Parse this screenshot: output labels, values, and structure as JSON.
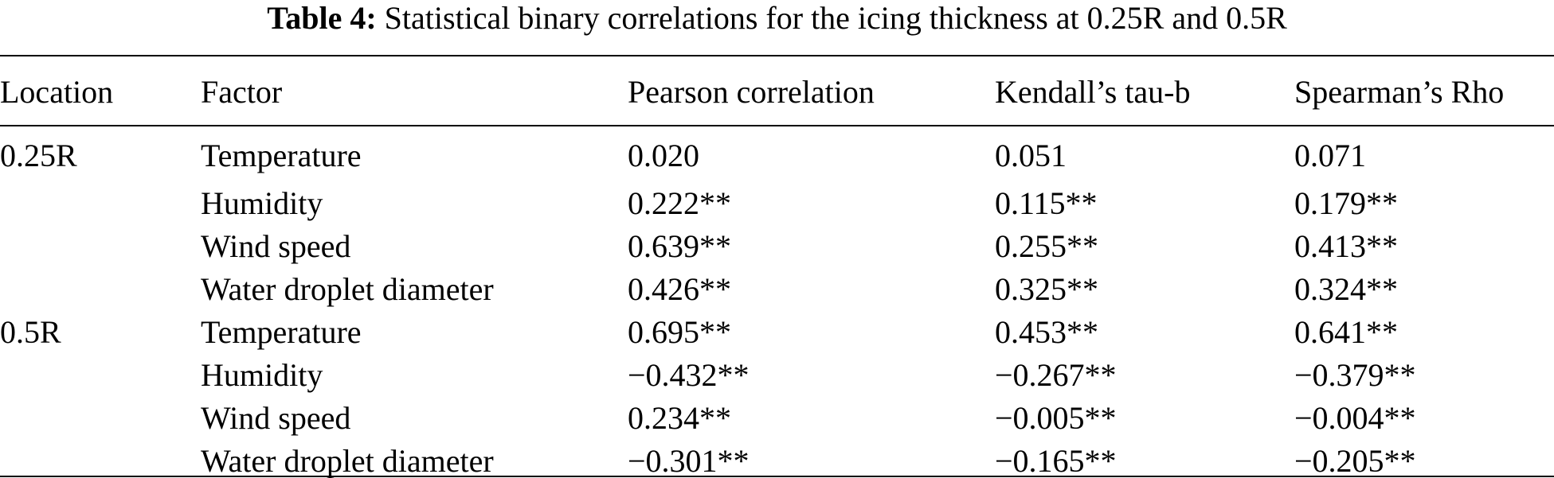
{
  "caption": {
    "label": "Table 4:",
    "text": "Statistical binary correlations for the icing thickness at 0.25R and 0.5R"
  },
  "table": {
    "headers": [
      "Location",
      "Factor",
      "Pearson correlation",
      "Kendall’s tau-b",
      "Spearman’s Rho"
    ],
    "rows": [
      [
        "0.25R",
        "Temperature",
        "0.020",
        "0.051",
        "0.071"
      ],
      [
        "",
        "Humidity",
        "0.222**",
        "0.115**",
        "0.179**"
      ],
      [
        "",
        "Wind speed",
        "0.639**",
        "0.255**",
        "0.413**"
      ],
      [
        "",
        "Water droplet diameter",
        "0.426**",
        "0.325**",
        "0.324**"
      ],
      [
        "0.5R",
        "Temperature",
        "0.695**",
        "0.453**",
        "0.641**"
      ],
      [
        "",
        "Humidity",
        "−0.432**",
        "−0.267**",
        "−0.379**"
      ],
      [
        "",
        "Wind speed",
        "0.234**",
        "−0.005**",
        "−0.004**"
      ],
      [
        "",
        "Water droplet diameter",
        "−0.301**",
        "−0.165**",
        "−0.205**"
      ]
    ]
  }
}
